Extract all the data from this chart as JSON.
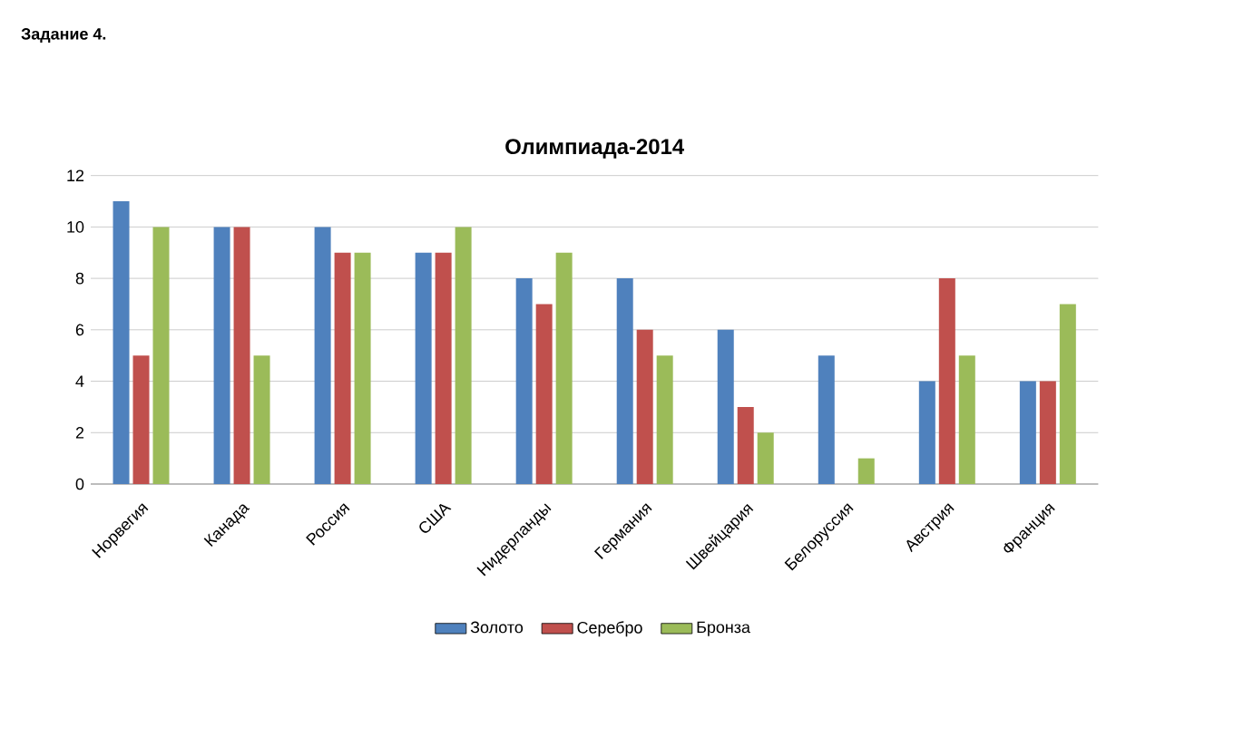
{
  "chart_data": {
    "type": "bar",
    "title": "Олимпиада-2014",
    "categories": [
      "Норвегия",
      "Канада",
      "Россия",
      "США",
      "Нидерланды",
      "Германия",
      "Швейцария",
      "Белоруссия",
      "Австрия",
      "Франция"
    ],
    "series": [
      {
        "name": "Золото",
        "color": "#4f81bd",
        "values": [
          11,
          10,
          10,
          9,
          8,
          8,
          6,
          5,
          4,
          4
        ]
      },
      {
        "name": "Серебро",
        "color": "#c0504d",
        "values": [
          5,
          10,
          9,
          9,
          7,
          6,
          3,
          0,
          8,
          4
        ]
      },
      {
        "name": "Бронза",
        "color": "#9bbb59",
        "values": [
          10,
          5,
          9,
          10,
          9,
          5,
          2,
          1,
          5,
          7
        ]
      }
    ],
    "ylim": [
      0,
      12
    ],
    "yticks": [
      0,
      2,
      4,
      6,
      8,
      10,
      12
    ],
    "grid": "y",
    "legend": "bottom",
    "annotations": [
      "Задание 4."
    ]
  }
}
